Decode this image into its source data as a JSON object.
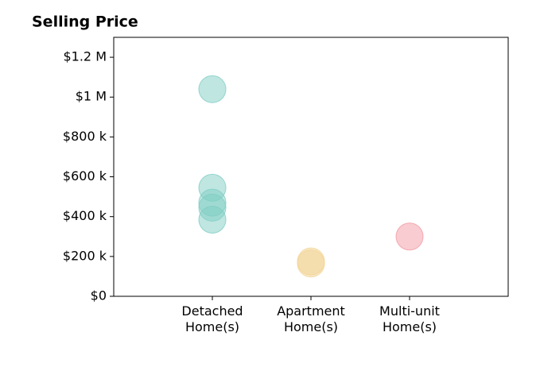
{
  "chart_data": {
    "type": "strip",
    "title": "Selling Price",
    "categories": [
      "Detached\nHome(s)",
      "Apartment\nHome(s)",
      "Multi-unit\nHome(s)"
    ],
    "values": [
      [
        1040000,
        545000,
        470000,
        445000,
        385000
      ],
      [
        175000,
        165000
      ],
      [
        300000
      ]
    ],
    "colors": [
      "#7fcdc4",
      "#f2d394",
      "#f29aa3"
    ],
    "ylim": [
      0,
      1300000
    ],
    "yticks": [
      {
        "value": 0,
        "label": "$0"
      },
      {
        "value": 200000,
        "label": "$200 k"
      },
      {
        "value": 400000,
        "label": "$400 k"
      },
      {
        "value": 600000,
        "label": "$600 k"
      },
      {
        "value": 800000,
        "label": "$800 k"
      },
      {
        "value": 1000000,
        "label": "$1 M"
      },
      {
        "value": 1200000,
        "label": "$1.2 M"
      }
    ]
  }
}
